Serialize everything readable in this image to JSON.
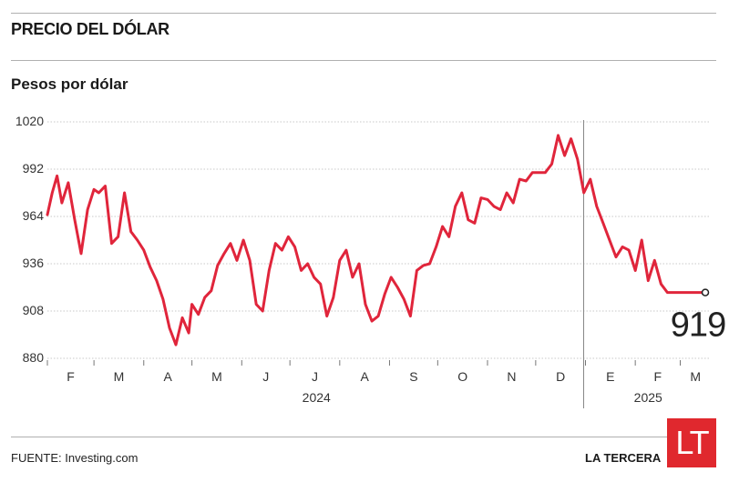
{
  "header": {
    "title": "PRECIO DEL DÓLAR",
    "subtitle": "Pesos por dólar"
  },
  "footer": {
    "source_label": "FUENTE:",
    "source_value": "Investing.com",
    "brand": "LA TERCERA",
    "logo_text": "LT"
  },
  "colors": {
    "line": "#e0253b",
    "grid": "#c8c8c8",
    "logo": "#e0282e"
  },
  "chart_data": {
    "type": "line",
    "title": "PRECIO DEL DÓLAR",
    "ylabel": "Pesos por dólar",
    "ylim": [
      880,
      1020
    ],
    "yticks": [
      1020,
      992,
      964,
      936,
      908,
      880
    ],
    "grid": true,
    "month_labels": [
      "F",
      "M",
      "A",
      "M",
      "J",
      "J",
      "A",
      "S",
      "O",
      "N",
      "D",
      "E",
      "F",
      "M"
    ],
    "year_labels": [
      "2024",
      "2025"
    ],
    "last_value_label": "919",
    "x_start": "2024-02-01",
    "x_end": "2025-03-20",
    "series": [
      {
        "x": [
          "2024-02-01",
          "2024-02-04",
          "2024-02-07",
          "2024-02-10",
          "2024-02-14",
          "2024-02-18",
          "2024-02-22",
          "2024-02-26",
          "2024-03-01",
          "2024-03-04",
          "2024-03-08",
          "2024-03-12",
          "2024-03-16",
          "2024-03-20",
          "2024-03-24",
          "2024-03-28",
          "2024-04-01",
          "2024-04-05",
          "2024-04-09",
          "2024-04-13",
          "2024-04-17",
          "2024-04-21",
          "2024-04-25",
          "2024-04-29",
          "2024-05-01",
          "2024-05-05",
          "2024-05-09",
          "2024-05-13",
          "2024-05-17",
          "2024-05-21",
          "2024-05-25",
          "2024-05-29",
          "2024-06-02",
          "2024-06-06",
          "2024-06-10",
          "2024-06-14",
          "2024-06-18",
          "2024-06-22",
          "2024-06-26",
          "2024-06-30",
          "2024-07-04",
          "2024-07-08",
          "2024-07-12",
          "2024-07-16",
          "2024-07-20",
          "2024-07-24",
          "2024-07-28",
          "2024-08-01",
          "2024-08-05",
          "2024-08-09",
          "2024-08-13",
          "2024-08-17",
          "2024-08-21",
          "2024-08-25",
          "2024-08-29",
          "2024-09-02",
          "2024-09-06",
          "2024-09-10",
          "2024-09-14",
          "2024-09-18",
          "2024-09-22",
          "2024-09-26",
          "2024-09-30",
          "2024-10-04",
          "2024-10-08",
          "2024-10-12",
          "2024-10-16",
          "2024-10-20",
          "2024-10-24",
          "2024-10-28",
          "2024-11-01",
          "2024-11-05",
          "2024-11-09",
          "2024-11-13",
          "2024-11-17",
          "2024-11-21",
          "2024-11-25",
          "2024-11-29",
          "2024-12-03",
          "2024-12-07",
          "2024-12-11",
          "2024-12-15",
          "2024-12-19",
          "2024-12-23",
          "2024-12-27",
          "2024-12-31",
          "2025-01-04",
          "2025-01-08",
          "2025-01-12",
          "2025-01-16",
          "2025-01-20",
          "2025-01-24",
          "2025-01-28",
          "2025-02-01",
          "2025-02-05",
          "2025-02-09",
          "2025-02-13",
          "2025-02-17",
          "2025-02-21",
          "2025-02-25",
          "2025-03-01",
          "2025-03-05",
          "2025-03-09",
          "2025-03-13",
          "2025-03-17",
          "2025-03-20"
        ],
        "values": [
          965,
          978,
          988,
          972,
          984,
          962,
          942,
          968,
          980,
          978,
          982,
          948,
          952,
          978,
          955,
          950,
          944,
          934,
          926,
          915,
          898,
          888,
          904,
          895,
          912,
          906,
          916,
          920,
          935,
          942,
          948,
          938,
          950,
          938,
          912,
          908,
          932,
          948,
          944,
          952,
          946,
          932,
          936,
          928,
          924,
          905,
          916,
          938,
          944,
          928,
          936,
          912,
          902,
          905,
          918,
          928,
          922,
          915,
          905,
          932,
          935,
          936,
          946,
          958,
          952,
          970,
          978,
          962,
          960,
          975,
          974,
          970,
          968,
          978,
          972,
          986,
          985,
          990,
          990,
          990,
          995,
          1012,
          1000,
          1010,
          998,
          978,
          986,
          970,
          960,
          950,
          940,
          946,
          944,
          932,
          950,
          926,
          938,
          924,
          919,
          919,
          919,
          919,
          919,
          919,
          919,
          919
        ]
      }
    ]
  }
}
